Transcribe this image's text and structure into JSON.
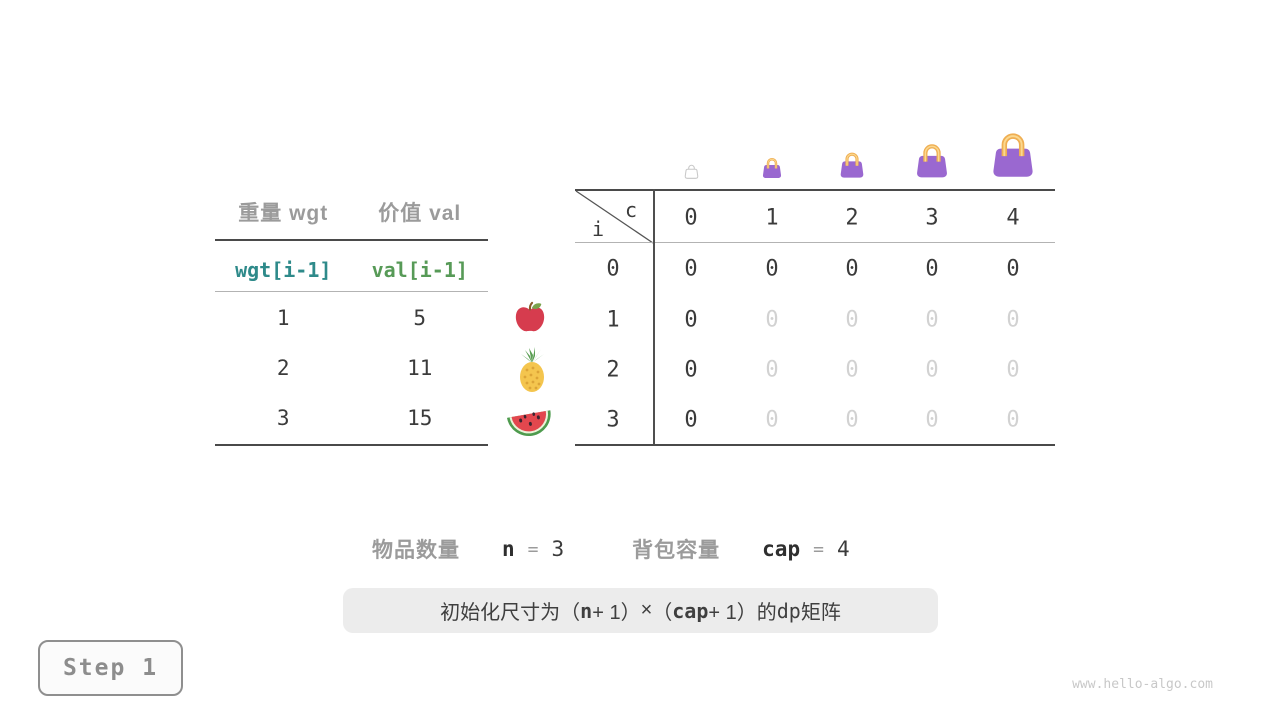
{
  "page": {
    "step_label": "Step 1",
    "watermark": "www.hello-algo.com"
  },
  "item_table": {
    "col_headers": [
      "重量 wgt",
      "价值 val"
    ],
    "var_row": [
      "wgt[i-1]",
      "val[i-1]"
    ],
    "rows": [
      {
        "weight": "1",
        "value": "5",
        "icon": "apple-icon"
      },
      {
        "weight": "2",
        "value": "11",
        "icon": "pineapple-icon"
      },
      {
        "weight": "3",
        "value": "15",
        "icon": "watermelon-icon"
      }
    ]
  },
  "dp_table": {
    "corner": {
      "col_var": "c",
      "row_var": "i"
    },
    "col_headers": [
      "0",
      "1",
      "2",
      "3",
      "4"
    ],
    "capacity_icons": [
      {
        "name": "empty-bag-icon",
        "size": 0
      },
      {
        "name": "bag-icon",
        "size": 1
      },
      {
        "name": "bag-icon",
        "size": 2
      },
      {
        "name": "bag-icon",
        "size": 3
      },
      {
        "name": "bag-icon",
        "size": 4
      }
    ],
    "rows": [
      {
        "label": "0",
        "cells": [
          {
            "v": "0",
            "dim": false
          },
          {
            "v": "0",
            "dim": false
          },
          {
            "v": "0",
            "dim": false
          },
          {
            "v": "0",
            "dim": false
          },
          {
            "v": "0",
            "dim": false
          }
        ]
      },
      {
        "label": "1",
        "cells": [
          {
            "v": "0",
            "dim": false
          },
          {
            "v": "0",
            "dim": true
          },
          {
            "v": "0",
            "dim": true
          },
          {
            "v": "0",
            "dim": true
          },
          {
            "v": "0",
            "dim": true
          }
        ]
      },
      {
        "label": "2",
        "cells": [
          {
            "v": "0",
            "dim": false
          },
          {
            "v": "0",
            "dim": true
          },
          {
            "v": "0",
            "dim": true
          },
          {
            "v": "0",
            "dim": true
          },
          {
            "v": "0",
            "dim": true
          }
        ]
      },
      {
        "label": "3",
        "cells": [
          {
            "v": "0",
            "dim": false
          },
          {
            "v": "0",
            "dim": true
          },
          {
            "v": "0",
            "dim": true
          },
          {
            "v": "0",
            "dim": true
          },
          {
            "v": "0",
            "dim": true
          }
        ]
      }
    ]
  },
  "legend": {
    "items_label": "物品数量",
    "items_var": "n",
    "items_eq": "=",
    "items_value": "3",
    "cap_label": "背包容量",
    "cap_var": "cap",
    "cap_eq": "=",
    "cap_value": "4"
  },
  "caption": {
    "segments": [
      {
        "t": "初始化尺寸为（",
        "s": "cjk"
      },
      {
        "t": "n",
        "s": "mono-b"
      },
      {
        "t": " + 1）",
        "s": "cjk"
      },
      {
        "t": "×",
        "s": "cjk"
      },
      {
        "t": "（",
        "s": "cjk"
      },
      {
        "t": "cap",
        "s": "mono-b"
      },
      {
        "t": " + 1）",
        "s": "cjk"
      },
      {
        "t": " 的 ",
        "s": "cjk"
      },
      {
        "t": "dp",
        "s": "mono-r"
      },
      {
        "t": " 矩阵",
        "s": "cjk"
      }
    ]
  },
  "colors": {
    "bag_purple": "#9a68d0",
    "handle_orange": "#efae52",
    "handle_highlight": "#fbd88f",
    "ghost_gray": "#c8c8c8",
    "apple_red": "#d63c4e",
    "leaf_green": "#7aa34d",
    "stem_brown": "#8a5a2a",
    "pineapple_yellow": "#f4c54e",
    "pineapple_dots": "#dca437",
    "pineapple_crown": "#5a9e53",
    "melon_rind": "#4e9b4e",
    "melon_inner": "#eaf3d8",
    "melon_flesh": "#e2474e",
    "melon_seed": "#3a2430",
    "var_teal": "#2e8a8a",
    "var_green": "#579a57",
    "dim_text": "#d2d2d2",
    "dark_text": "#3b3b3b",
    "gray_label": "#9b9b9b"
  }
}
